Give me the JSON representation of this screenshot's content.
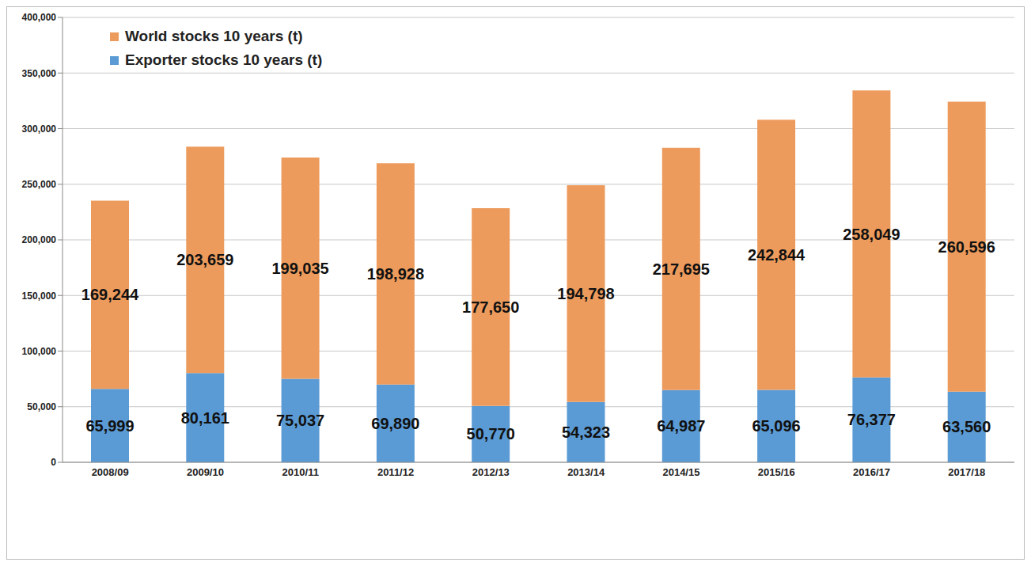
{
  "chart_data": {
    "type": "bar",
    "stacked": true,
    "data_labels": true,
    "grid": true,
    "legend": "top-left",
    "categories": [
      "2008/09",
      "2009/10",
      "2010/11",
      "2011/12",
      "2012/13",
      "2013/14",
      "2014/15",
      "2015/16",
      "2016/17",
      "2017/18"
    ],
    "series": [
      {
        "name": "Exporter stocks 10 years (t)",
        "color": "#5b9bd5",
        "values": [
          65999,
          80161,
          75037,
          69890,
          50770,
          54323,
          64987,
          65096,
          76377,
          63560
        ],
        "value_labels": [
          "65,999",
          "80,161",
          "75,037",
          "69,890",
          "50,770",
          "54,323",
          "64,987",
          "65,096",
          "76,377",
          "63,560"
        ]
      },
      {
        "name": "World stocks 10 years (t)",
        "color": "#ed9b5c",
        "values": [
          169244,
          203659,
          199035,
          198928,
          177650,
          194798,
          217695,
          242844,
          258049,
          260596
        ],
        "value_labels": [
          "169,244",
          "203,659",
          "199,035",
          "198,928",
          "177,650",
          "194,798",
          "217,695",
          "242,844",
          "258,049",
          "260,596"
        ]
      }
    ],
    "ylim": [
      0,
      400000
    ],
    "yticks": [
      {
        "value": 0,
        "label": "0"
      },
      {
        "value": 50000,
        "label": "50,000"
      },
      {
        "value": 100000,
        "label": "100,000"
      },
      {
        "value": 150000,
        "label": "150,000"
      },
      {
        "value": 200000,
        "label": "200,000"
      },
      {
        "value": 250000,
        "label": "250,000"
      },
      {
        "value": 300000,
        "label": "300,000"
      },
      {
        "value": 350000,
        "label": "350,000"
      },
      {
        "value": 400000,
        "label": "400,000"
      }
    ]
  }
}
